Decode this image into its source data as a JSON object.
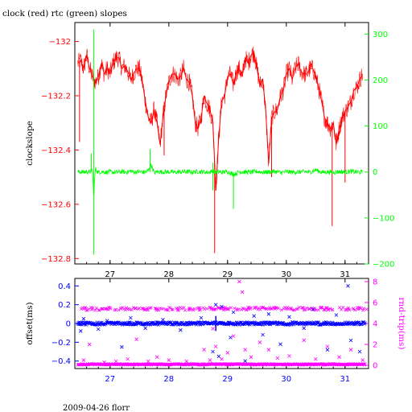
{
  "title": "clock (red) rtc (green) slopes",
  "footer": "2009-04-26 florr",
  "colors": {
    "clock": "#ff0000",
    "rtc": "#00ff00",
    "offset": "#0000ff",
    "rndtrip": "#ff00ff",
    "frame": "#000000"
  },
  "chart_data": [
    {
      "type": "line",
      "xlim": [
        26.4,
        31.4
      ],
      "x_ticks": [
        "27",
        "28",
        "29",
        "30",
        "31"
      ],
      "grid": false,
      "ylabel": "clockslope",
      "ylim": [
        -132.82,
        -131.93
      ],
      "y_ticks": [
        "-132",
        "-132.2",
        "-132.4",
        "-132.6",
        "-132.8"
      ],
      "y2lim": [
        -200,
        325
      ],
      "y2_ticks": [
        "300",
        "200",
        "100",
        "0",
        "-100",
        "-200"
      ],
      "series": [
        {
          "name": "clock",
          "axis": "left",
          "x": [
            26.45,
            26.5,
            26.55,
            26.6,
            26.65,
            26.7,
            26.75,
            26.8,
            26.85,
            26.9,
            26.95,
            27.0,
            27.05,
            27.1,
            27.15,
            27.2,
            27.25,
            27.3,
            27.35,
            27.4,
            27.45,
            27.5,
            27.55,
            27.6,
            27.65,
            27.7,
            27.75,
            27.8,
            27.85,
            27.9,
            27.95,
            28.0,
            28.05,
            28.1,
            28.15,
            28.2,
            28.25,
            28.3,
            28.35,
            28.4,
            28.45,
            28.5,
            28.55,
            28.6,
            28.65,
            28.7,
            28.75,
            28.8,
            28.85,
            28.9,
            28.95,
            29.0,
            29.05,
            29.1,
            29.15,
            29.2,
            29.25,
            29.3,
            29.35,
            29.4,
            29.45,
            29.5,
            29.55,
            29.6,
            29.65,
            29.7,
            29.75,
            29.8,
            29.85,
            29.9,
            29.95,
            30.0,
            30.05,
            30.1,
            30.15,
            30.2,
            30.25,
            30.3,
            30.35,
            30.4,
            30.45,
            30.5,
            30.55,
            30.6,
            30.65,
            30.7,
            30.75,
            30.8,
            30.85,
            30.9,
            30.95,
            31.0,
            31.05,
            31.1,
            31.15,
            31.2,
            31.25,
            31.3
          ],
          "values": [
            -132.08,
            -132.07,
            -132.1,
            -132.05,
            -132.1,
            -132.13,
            -132.15,
            -132.13,
            -132.08,
            -132.12,
            -132.1,
            -132.12,
            -132.08,
            -132.06,
            -132.06,
            -132.1,
            -132.09,
            -132.11,
            -132.14,
            -132.12,
            -132.1,
            -132.1,
            -132.15,
            -132.22,
            -132.28,
            -132.3,
            -132.25,
            -132.3,
            -132.38,
            -132.28,
            -132.2,
            -132.15,
            -132.12,
            -132.12,
            -132.14,
            -132.13,
            -132.1,
            -132.14,
            -132.15,
            -132.2,
            -132.3,
            -132.32,
            -132.28,
            -132.2,
            -132.23,
            -132.25,
            -132.3,
            -132.55,
            -132.35,
            -132.22,
            -132.2,
            -132.13,
            -132.12,
            -132.16,
            -132.11,
            -132.1,
            -132.13,
            -132.06,
            -132.08,
            -132.05,
            -132.04,
            -132.1,
            -132.16,
            -132.14,
            -132.26,
            -132.45,
            -132.28,
            -132.26,
            -132.25,
            -132.2,
            -132.18,
            -132.12,
            -132.1,
            -132.14,
            -132.1,
            -132.08,
            -132.11,
            -132.12,
            -132.12,
            -132.1,
            -132.1,
            -132.13,
            -132.17,
            -132.22,
            -132.28,
            -132.3,
            -132.32,
            -132.3,
            -132.38,
            -132.32,
            -132.28,
            -132.26,
            -132.24,
            -132.22,
            -132.18,
            -132.17,
            -132.14,
            -132.12
          ]
        },
        {
          "name": "rtc",
          "axis": "right",
          "x": [
            26.45,
            26.5,
            26.55,
            26.6,
            26.65,
            26.7,
            26.72,
            26.75,
            26.8,
            26.85,
            26.9,
            26.95,
            27.0,
            27.1,
            27.2,
            27.3,
            27.35,
            27.4,
            27.5,
            27.6,
            27.65,
            27.7,
            27.75,
            27.8,
            27.9,
            28.0,
            28.1,
            28.2,
            28.3,
            28.4,
            28.5,
            28.6,
            28.7,
            28.75,
            28.8,
            28.85,
            28.9,
            29.0,
            29.05,
            29.1,
            29.2,
            29.3,
            29.4,
            29.5,
            29.6,
            29.7,
            29.8,
            29.9,
            30.0,
            30.1,
            30.2,
            30.3,
            30.4,
            30.5,
            30.6,
            30.7,
            30.8,
            30.9,
            31.0,
            31.1,
            31.2,
            31.3
          ],
          "values": [
            0,
            1,
            -1,
            2,
            -3,
            20,
            -180,
            25,
            -5,
            3,
            0,
            -2,
            1,
            -3,
            2,
            -1,
            8,
            0,
            1,
            -2,
            10,
            55,
            -8,
            2,
            0,
            1,
            -2,
            0,
            2,
            -1,
            3,
            0,
            -2,
            10,
            -5,
            0,
            -2,
            3,
            -8,
            -20,
            2,
            0,
            -3,
            4,
            -2,
            0,
            3,
            -4,
            1,
            -2,
            0,
            2,
            -1,
            15,
            -2,
            0,
            -3,
            2,
            0,
            4,
            -1,
            0
          ]
        }
      ]
    },
    {
      "type": "scatter",
      "xlim": [
        26.4,
        31.4
      ],
      "x_ticks": [
        "27",
        "28",
        "29",
        "30",
        "31"
      ],
      "grid": false,
      "ylabel": "offset(ms)",
      "ylim": [
        -0.48,
        0.48
      ],
      "y_ticks": [
        "0.4",
        "0.2",
        "0",
        "-0.2",
        "-0.4"
      ],
      "y2label": "rnd-trip(ms)",
      "y2lim": [
        -0.3,
        8.3
      ],
      "y2_ticks": [
        "8",
        "6",
        "4",
        "2",
        "0"
      ],
      "series": [
        {
          "name": "offset",
          "axis": "left",
          "x": [
            26.5,
            26.55,
            26.8,
            26.95,
            27.2,
            27.35,
            27.6,
            27.9,
            28.2,
            28.55,
            28.75,
            28.8,
            28.85,
            28.9,
            29.05,
            29.1,
            29.3,
            29.45,
            29.6,
            29.7,
            29.9,
            30.05,
            30.3,
            30.45,
            30.7,
            30.85,
            31.05,
            31.1,
            31.25
          ],
          "values": [
            -0.08,
            0.05,
            -0.06,
            0.03,
            -0.25,
            0.06,
            -0.05,
            0.04,
            -0.07,
            0.06,
            -0.3,
            0.2,
            -0.35,
            0.18,
            -0.15,
            0.12,
            -0.4,
            0.08,
            -0.12,
            0.1,
            -0.22,
            0.07,
            -0.05,
            0.15,
            -0.28,
            0.09,
            0.4,
            -0.18,
            -0.3
          ]
        },
        {
          "name": "rndtrip",
          "axis": "right",
          "x": [
            26.55,
            26.65,
            26.9,
            27.1,
            27.3,
            27.45,
            27.65,
            27.8,
            28.0,
            28.3,
            28.6,
            28.7,
            28.75,
            28.8,
            28.9,
            29.0,
            29.1,
            29.2,
            29.25,
            29.3,
            29.4,
            29.55,
            29.7,
            29.85,
            30.05,
            30.3,
            30.5,
            30.7,
            30.9,
            31.1,
            31.3
          ],
          "values": [
            0.5,
            2,
            0.3,
            0.4,
            0.6,
            2.5,
            0.4,
            0.8,
            0.5,
            0.4,
            1.5,
            0.5,
            3.5,
            1.8,
            0.6,
            1.2,
            2.8,
            8,
            7,
            1.5,
            0.8,
            2.2,
            1.5,
            0.7,
            0.9,
            2.4,
            0.6,
            1.8,
            0.8,
            1.5,
            0.5
          ]
        }
      ]
    }
  ]
}
